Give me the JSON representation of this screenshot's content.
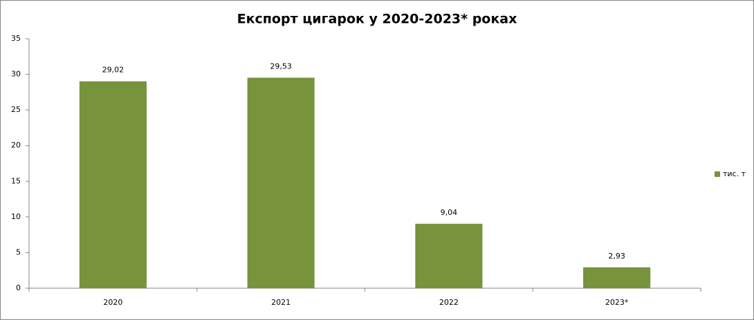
{
  "chart_data": {
    "type": "bar",
    "title": "Експорт цигарок у 2020-2023*  роках",
    "categories": [
      "2020",
      "2021",
      "2022",
      "2023*"
    ],
    "series": [
      {
        "name": "тис. т",
        "color": "#77933c",
        "values": [
          29.02,
          29.53,
          9.04,
          2.93
        ],
        "value_labels": [
          "29,02",
          "29,53",
          "9,04",
          "2,93"
        ]
      }
    ],
    "ylim": [
      0,
      35
    ],
    "yticks": [
      0,
      5,
      10,
      15,
      20,
      25,
      30,
      35
    ],
    "grid": false,
    "legend": "right"
  }
}
